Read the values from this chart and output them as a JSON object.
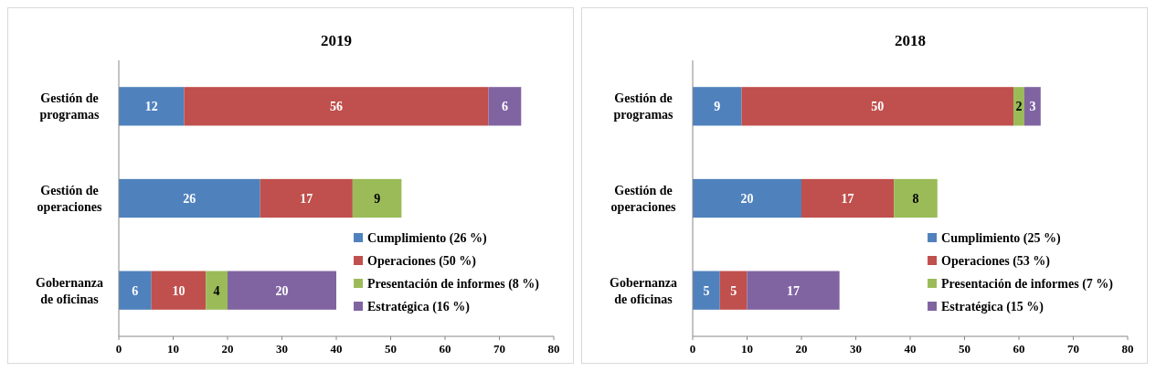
{
  "chart_data": [
    {
      "type": "bar",
      "orientation": "horizontal",
      "stacked": true,
      "title": "2019",
      "categories": [
        "Gestión de programas",
        "Gestión de operaciones",
        "Gobernanza de oficinas"
      ],
      "series": [
        {
          "name": "Cumplimiento (26 %)",
          "color": "#4f81bd",
          "values": [
            12,
            26,
            6
          ]
        },
        {
          "name": "Operaciones (50 %)",
          "color": "#c0504d",
          "values": [
            56,
            17,
            10
          ]
        },
        {
          "name": "Presentación de informes (8 %)",
          "color": "#9bbb59",
          "values": [
            null,
            9,
            4
          ]
        },
        {
          "name": "Estratégica (16 %)",
          "color": "#8064a2",
          "values": [
            6,
            null,
            20
          ]
        }
      ],
      "xlim": [
        0,
        80
      ],
      "xticks": [
        0,
        10,
        20,
        30,
        40,
        50,
        60,
        70,
        80
      ],
      "data_labels": true,
      "legend": "bottom right",
      "grid": false
    },
    {
      "type": "bar",
      "orientation": "horizontal",
      "stacked": true,
      "title": "2018",
      "categories": [
        "Gestión de programas",
        "Gestión de operaciones",
        "Gobernanza de oficinas"
      ],
      "series": [
        {
          "name": "Cumplimiento (25 %)",
          "color": "#4f81bd",
          "values": [
            9,
            20,
            5
          ]
        },
        {
          "name": "Operaciones (53 %)",
          "color": "#c0504d",
          "values": [
            50,
            17,
            5
          ]
        },
        {
          "name": "Presentación de informes (7 %)",
          "color": "#9bbb59",
          "values": [
            2,
            8,
            null
          ]
        },
        {
          "name": "Estratégica (15 %)",
          "color": "#8064a2",
          "values": [
            3,
            null,
            17
          ]
        }
      ],
      "xlim": [
        0,
        80
      ],
      "xticks": [
        0,
        10,
        20,
        30,
        40,
        50,
        60,
        70,
        80
      ],
      "data_labels": true,
      "legend": "bottom right",
      "grid": false
    }
  ]
}
